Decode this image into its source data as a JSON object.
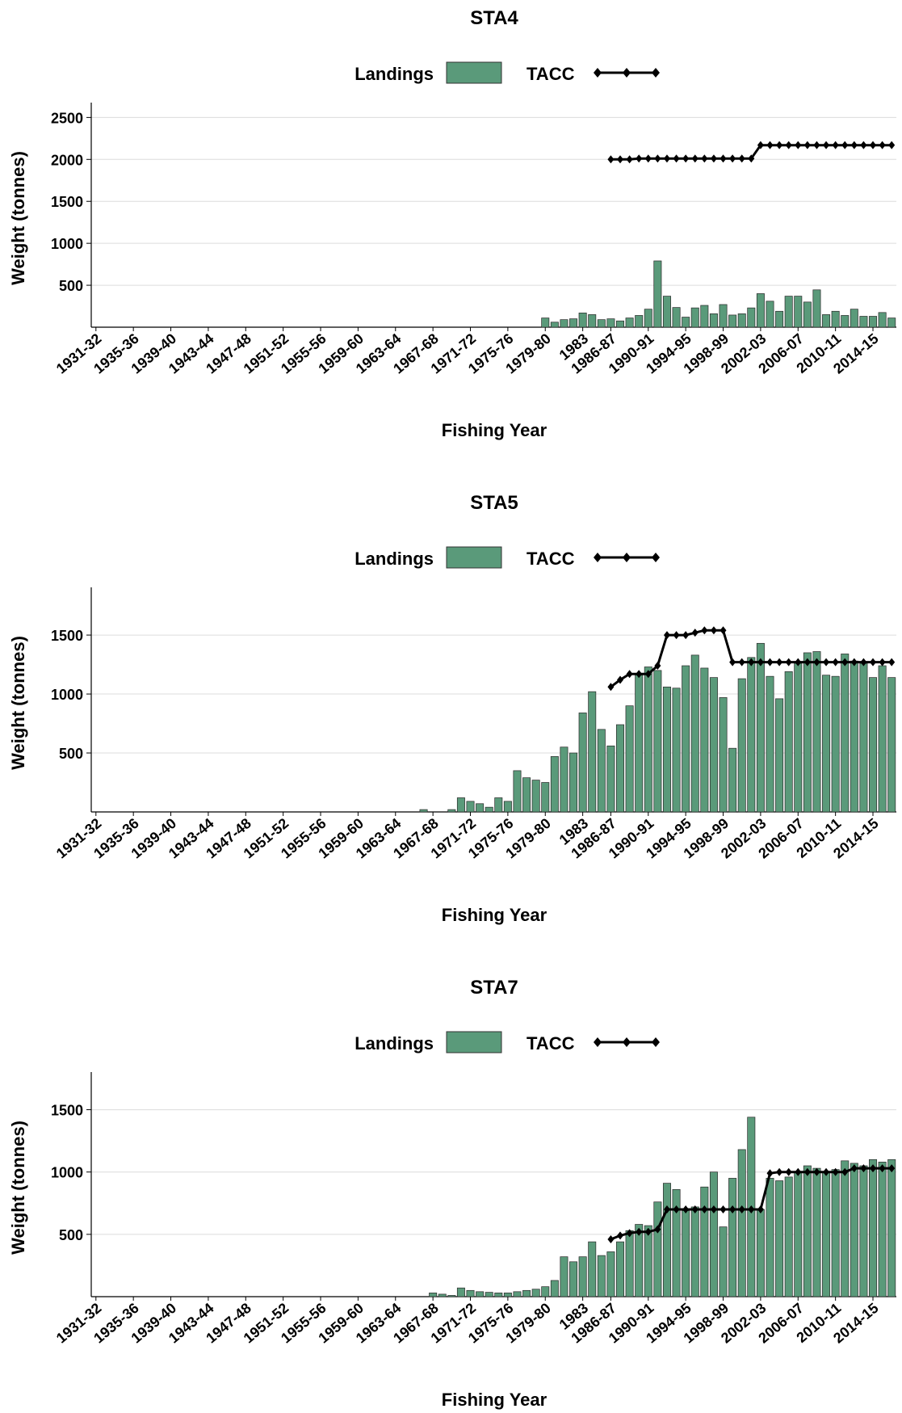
{
  "chart_data": [
    {
      "type": "bar",
      "title": "STA4",
      "xlabel": "Fishing Year",
      "ylabel": "Weight (tonnes)",
      "ylim": [
        0,
        2600
      ],
      "yticks": [
        500,
        1000,
        1500,
        2000,
        2500
      ],
      "grid": true,
      "legend_position": "top",
      "x_tick_labels": [
        "1931-32",
        "1935-36",
        "1939-40",
        "1943-44",
        "1947-48",
        "1951-52",
        "1955-56",
        "1959-60",
        "1963-64",
        "1967-68",
        "1971-72",
        "1975-76",
        "1979-80",
        "1983",
        "1986-87",
        "1990-91",
        "1994-95",
        "1998-99",
        "2002-03",
        "2006-07",
        "2010-11",
        "2014-15"
      ],
      "series": [
        {
          "name": "Landings",
          "kind": "bar",
          "color": "#5a9a7a",
          "values": [
            0,
            0,
            0,
            0,
            0,
            0,
            0,
            0,
            0,
            0,
            0,
            0,
            0,
            0,
            0,
            0,
            0,
            0,
            0,
            0,
            0,
            0,
            0,
            0,
            0,
            0,
            0,
            0,
            0,
            0,
            0,
            0,
            0,
            0,
            0,
            0,
            0,
            0,
            0,
            0,
            0,
            0,
            0,
            0,
            0,
            0,
            0,
            0,
            0,
            0,
            0,
            0,
            0,
            0,
            0,
            0,
            0,
            0,
            0,
            0,
            0,
            0,
            0,
            0,
            0,
            0,
            0,
            0,
            0,
            0,
            0,
            0,
            0,
            0,
            0,
            0,
            0,
            0,
            0,
            0,
            0,
            0,
            0,
            0,
            0,
            0,
            0,
            0,
            0,
            0,
            0,
            0,
            0,
            0,
            0,
            0,
            0,
            0,
            0,
            0,
            0,
            0,
            0,
            0,
            0,
            0,
            0,
            0,
            0,
            0,
            0,
            0,
            0,
            0,
            0,
            0,
            0,
            0,
            0,
            0,
            0,
            0,
            0,
            0,
            0,
            0,
            0,
            0,
            0,
            0,
            0,
            0,
            0,
            0,
            0,
            0,
            0,
            0,
            0,
            0,
            0,
            0,
            0,
            0,
            0,
            0,
            0,
            0,
            0,
            0,
            0,
            0,
            0,
            0,
            0,
            0,
            0,
            0,
            0,
            0,
            0,
            0,
            0,
            0,
            0,
            0,
            0,
            0,
            0,
            0,
            0,
            0,
            0,
            0,
            0,
            0,
            0,
            0,
            0,
            0,
            0,
            0,
            0,
            0,
            0,
            0,
            0,
            0,
            0,
            0,
            0,
            0,
            0,
            0,
            0,
            0,
            0,
            0,
            0,
            0,
            0
          ]
        }
      ]
    }
  ]
}
